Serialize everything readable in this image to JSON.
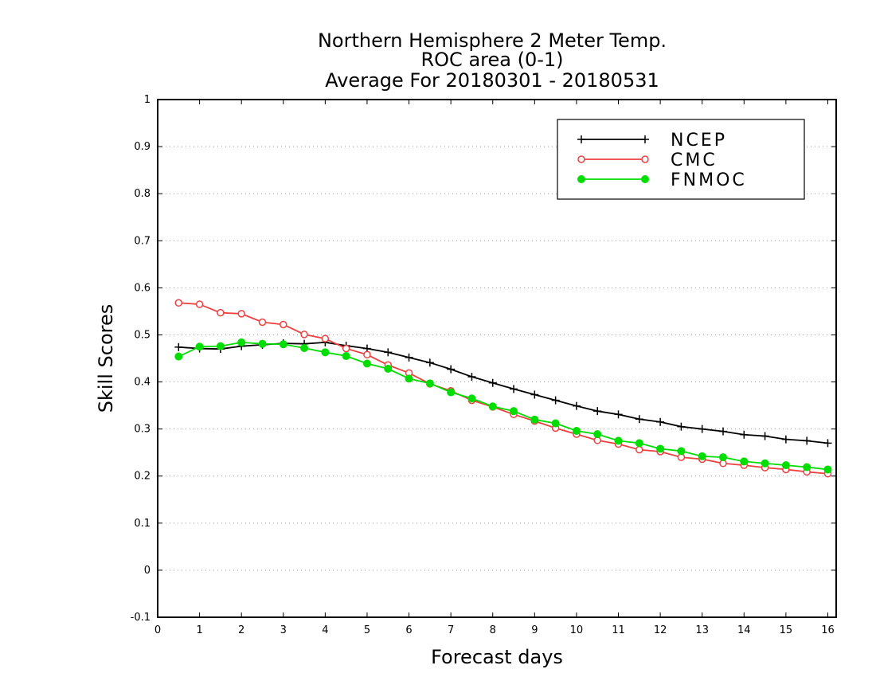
{
  "chart_data": {
    "type": "line",
    "title_lines": [
      "Northern Hemisphere 2 Meter Temp.",
      "ROC area (0-1)",
      "Average For 20180301 - 20180531"
    ],
    "xlabel": "Forecast days",
    "ylabel": "Skill Scores",
    "xlim": [
      0,
      16.2
    ],
    "ylim": [
      -0.1,
      1
    ],
    "x_ticks": [
      0,
      1,
      2,
      3,
      4,
      5,
      6,
      7,
      8,
      9,
      10,
      11,
      12,
      13,
      14,
      15,
      16
    ],
    "y_ticks": [
      -0.1,
      0,
      0.1,
      0.2,
      0.3,
      0.4,
      0.5,
      0.6,
      0.7,
      0.8,
      0.9,
      1
    ],
    "y_tick_labels": [
      "-0.1",
      "0",
      "0.1",
      "0.2",
      "0.3",
      "0.4",
      "0.5",
      "0.6",
      "0.7",
      "0.8",
      "0.9",
      "1"
    ],
    "grid": "horizontal dotted",
    "legend_position": "top-right",
    "x": [
      0.5,
      1,
      1.5,
      2,
      2.5,
      3,
      3.5,
      4,
      4.5,
      5,
      5.5,
      6,
      6.5,
      7,
      7.5,
      8,
      8.5,
      9,
      9.5,
      10,
      10.5,
      11,
      11.5,
      12,
      12.5,
      13,
      13.5,
      14,
      14.5,
      15,
      15.5,
      16
    ],
    "series": [
      {
        "name": "NCEP",
        "color": "#000000",
        "marker": "plus",
        "values": [
          0.474,
          0.471,
          0.47,
          0.476,
          0.479,
          0.482,
          0.481,
          0.484,
          0.477,
          0.471,
          0.463,
          0.452,
          0.441,
          0.427,
          0.411,
          0.398,
          0.385,
          0.373,
          0.361,
          0.349,
          0.338,
          0.331,
          0.321,
          0.315,
          0.305,
          0.3,
          0.295,
          0.288,
          0.285,
          0.278,
          0.275,
          0.27
        ]
      },
      {
        "name": "CMC",
        "color": "#ef4040",
        "marker": "open-circle",
        "values": [
          0.568,
          0.565,
          0.547,
          0.545,
          0.527,
          0.522,
          0.501,
          0.492,
          0.471,
          0.458,
          0.436,
          0.419,
          0.396,
          0.381,
          0.361,
          0.347,
          0.331,
          0.317,
          0.302,
          0.289,
          0.276,
          0.268,
          0.256,
          0.252,
          0.24,
          0.236,
          0.227,
          0.223,
          0.218,
          0.214,
          0.209,
          0.205
        ]
      },
      {
        "name": "FNMOC",
        "color": "#00dd00",
        "marker": "filled-circle",
        "values": [
          0.454,
          0.475,
          0.476,
          0.484,
          0.481,
          0.48,
          0.472,
          0.463,
          0.455,
          0.439,
          0.428,
          0.407,
          0.397,
          0.378,
          0.365,
          0.348,
          0.338,
          0.32,
          0.312,
          0.296,
          0.289,
          0.275,
          0.27,
          0.258,
          0.253,
          0.242,
          0.24,
          0.231,
          0.227,
          0.223,
          0.219,
          0.214
        ]
      }
    ]
  }
}
